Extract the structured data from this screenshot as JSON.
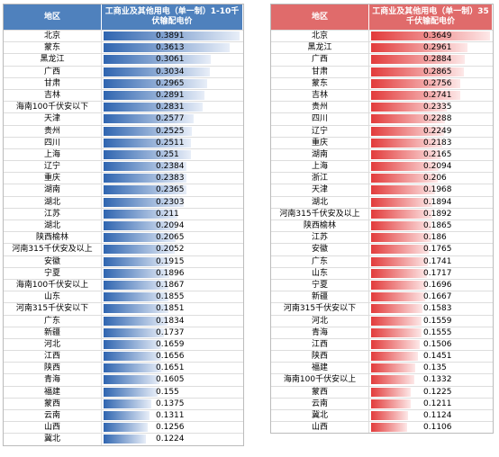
{
  "left": {
    "header": [
      "地区",
      "工商业及其他用电（单一制）1-10千伏输配电价"
    ],
    "rows": [
      [
        "北京",
        0.3891
      ],
      [
        "蒙东",
        0.3613
      ],
      [
        "黑龙江",
        0.3061
      ],
      [
        "广西",
        0.3034
      ],
      [
        "甘肃",
        0.2965
      ],
      [
        "吉林",
        0.2891
      ],
      [
        "海南100千伏安以下",
        0.2831
      ],
      [
        "天津",
        0.2577
      ],
      [
        "贵州",
        0.2525
      ],
      [
        "四川",
        0.2511
      ],
      [
        "上海",
        0.251
      ],
      [
        "辽宁",
        0.2384
      ],
      [
        "重庆",
        0.2383
      ],
      [
        "湖南",
        0.2365
      ],
      [
        "湖北",
        0.2303
      ],
      [
        "江苏",
        0.211
      ],
      [
        "湖北",
        0.2094
      ],
      [
        "陕西榆林",
        0.2065
      ],
      [
        "河南315千伏安及以上",
        0.2052
      ],
      [
        "安徽",
        0.1915
      ],
      [
        "宁夏",
        0.1896
      ],
      [
        "海南100千伏安以上",
        0.1867
      ],
      [
        "山东",
        0.1855
      ],
      [
        "河南315千伏安以下",
        0.1851
      ],
      [
        "广东",
        0.1834
      ],
      [
        "新疆",
        0.1737
      ],
      [
        "河北",
        0.1659
      ],
      [
        "江西",
        0.1656
      ],
      [
        "陕西",
        0.1651
      ],
      [
        "青海",
        0.1605
      ],
      [
        "福建",
        0.155
      ],
      [
        "蒙西",
        0.1375
      ],
      [
        "云南",
        0.1311
      ],
      [
        "山西",
        0.1256
      ],
      [
        "冀北",
        0.1224
      ]
    ]
  },
  "right": {
    "header": [
      "地区",
      "工商业及其他用电（单一制）35千伏输配电价"
    ],
    "rows": [
      [
        "北京",
        0.3649
      ],
      [
        "黑龙江",
        0.2961
      ],
      [
        "广西",
        0.2884
      ],
      [
        "甘肃",
        0.2865
      ],
      [
        "蒙东",
        0.2756
      ],
      [
        "吉林",
        0.2741
      ],
      [
        "贵州",
        0.2335
      ],
      [
        "四川",
        0.2288
      ],
      [
        "辽宁",
        0.2249
      ],
      [
        "重庆",
        0.2183
      ],
      [
        "湖南",
        0.2165
      ],
      [
        "上海",
        0.2094
      ],
      [
        "浙江",
        0.206
      ],
      [
        "天津",
        0.1968
      ],
      [
        "湖北",
        0.1894
      ],
      [
        "河南315千伏安及以上",
        0.1892
      ],
      [
        "陕西榆林",
        0.1865
      ],
      [
        "江苏",
        0.186
      ],
      [
        "安徽",
        0.1765
      ],
      [
        "广东",
        0.1741
      ],
      [
        "山东",
        0.1717
      ],
      [
        "宁夏",
        0.1696
      ],
      [
        "新疆",
        0.1667
      ],
      [
        "河南315千伏安以下",
        0.1583
      ],
      [
        "河北",
        0.1559
      ],
      [
        "青海",
        0.1555
      ],
      [
        "江西",
        0.1506
      ],
      [
        "陕西",
        0.1451
      ],
      [
        "福建",
        0.135
      ],
      [
        "海南100千伏安以上",
        0.1332
      ],
      [
        "蒙西",
        0.1225
      ],
      [
        "云南",
        0.1211
      ],
      [
        "冀北",
        0.1124
      ],
      [
        "山西",
        0.1106
      ]
    ]
  }
}
